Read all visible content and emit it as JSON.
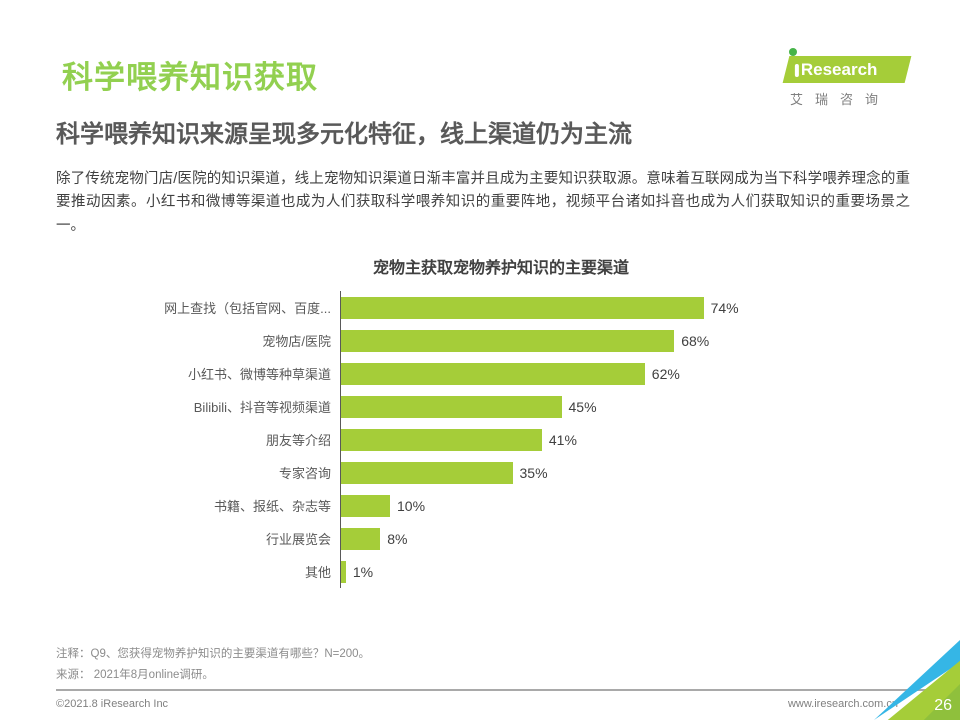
{
  "colors": {
    "title_green": "#92d050",
    "bar_green": "#a5cd39",
    "corner_blue": "#35b6e6"
  },
  "header": {
    "page_title": "科学喂养知识获取",
    "logo_text": "Research",
    "logo_sub": "艾瑞咨询"
  },
  "headline": "科学喂养知识来源呈现多元化特征，线上渠道仍为主流",
  "body_paragraph": "除了传统宠物门店/医院的知识渠道，线上宠物知识渠道日渐丰富并且成为主要知识获取源。意味着互联网成为当下科学喂养理念的重要推动因素。小红书和微博等渠道也成为人们获取科学喂养知识的重要阵地，视频平台诸如抖音也成为人们获取知识的重要场景之一。",
  "chart_data": {
    "type": "bar",
    "orientation": "horizontal",
    "title": "宠物主获取宠物养护知识的主要渠道",
    "categories": [
      "网上查找（包括官网、百度...",
      "宠物店/医院",
      "小红书、微博等种草渠道",
      "Bilibili、抖音等视频渠道",
      "朋友等介绍",
      "专家咨询",
      "书籍、报纸、杂志等",
      "行业展览会",
      "其他"
    ],
    "values": [
      74,
      68,
      62,
      45,
      41,
      35,
      10,
      8,
      1
    ],
    "unit": "%",
    "xlim": [
      0,
      100
    ],
    "bar_color": "#a5cd39",
    "grid": false,
    "legend": false
  },
  "notes": {
    "annotation": "注释：Q9、您获得宠物养护知识的主要渠道有哪些？N=200。",
    "source": "来源： 2021年8月online调研。"
  },
  "footer": {
    "copyright": "©2021.8 iResearch Inc",
    "website": "www.iresearch.com.cn",
    "page_number": "26"
  }
}
